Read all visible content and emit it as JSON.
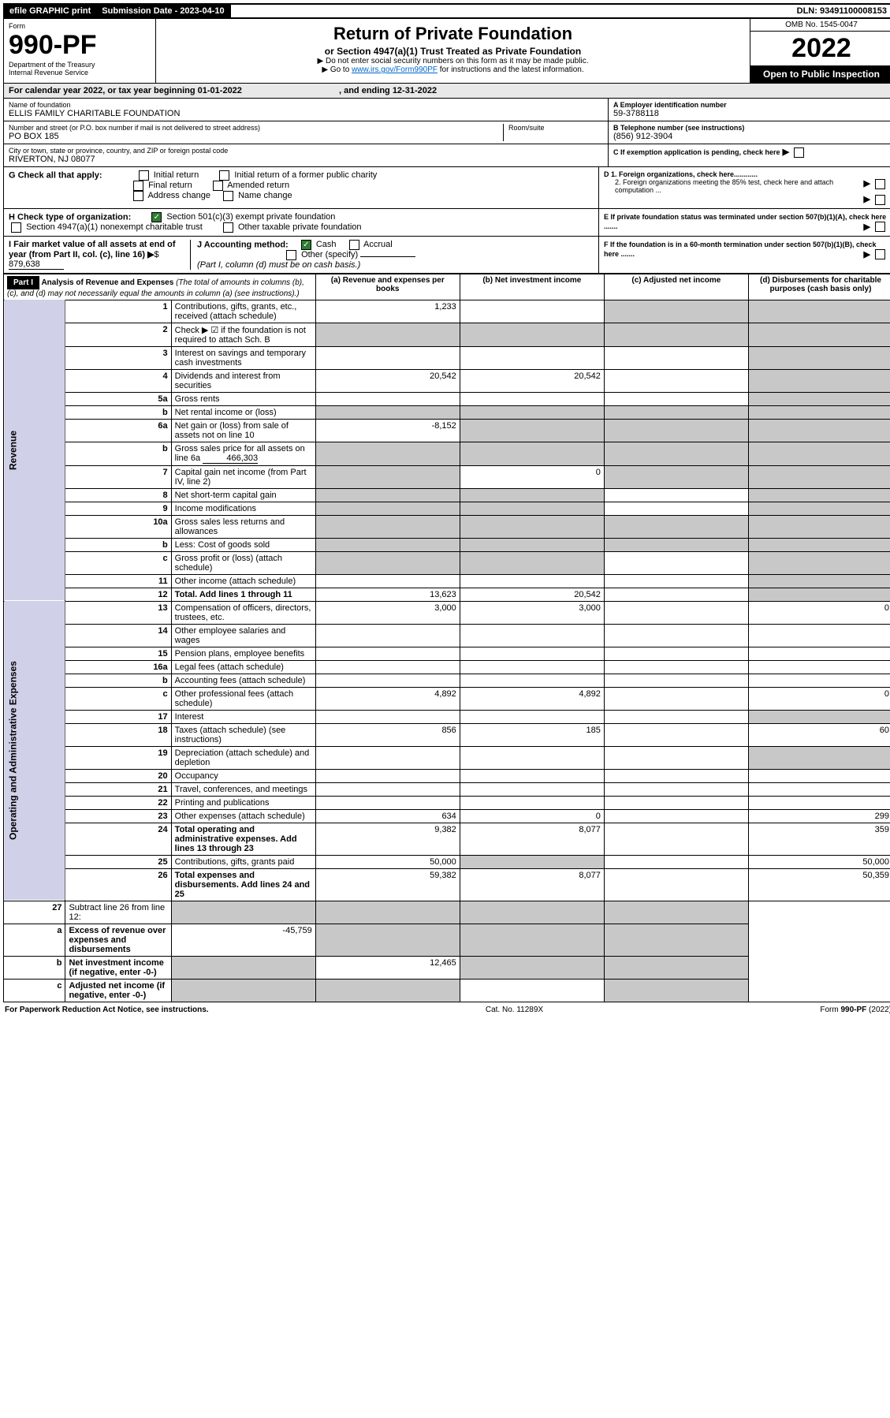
{
  "top": {
    "efile": "efile GRAPHIC print",
    "sub_label": "Submission Date - 2023-04-10",
    "dln_label": "DLN: 93491100008153"
  },
  "header": {
    "form_word": "Form",
    "form_num": "990-PF",
    "dept": "Department of the Treasury",
    "irs": "Internal Revenue Service",
    "title": "Return of Private Foundation",
    "subtitle": "or Section 4947(a)(1) Trust Treated as Private Foundation",
    "instr1": "▶ Do not enter social security numbers on this form as it may be made public.",
    "instr2_pre": "▶ Go to ",
    "instr2_link": "www.irs.gov/Form990PF",
    "instr2_post": " for instructions and the latest information.",
    "omb": "OMB No. 1545-0047",
    "year": "2022",
    "open": "Open to Public Inspection"
  },
  "cal": {
    "text_a": "For calendar year 2022, or tax year beginning 01-01-2022",
    "text_b": ", and ending 12-31-2022"
  },
  "id": {
    "name_label": "Name of foundation",
    "name": "ELLIS FAMILY CHARITABLE FOUNDATION",
    "addr_label": "Number and street (or P.O. box number if mail is not delivered to street address)",
    "addr": "PO BOX 185",
    "room_label": "Room/suite",
    "city_label": "City or town, state or province, country, and ZIP or foreign postal code",
    "city": "RIVERTON, NJ  08077",
    "a_label": "A Employer identification number",
    "a_val": "59-3788118",
    "b_label": "B Telephone number (see instructions)",
    "b_val": "(856) 912-3904",
    "c_label": "C If exemption application is pending, check here",
    "d1": "D 1. Foreign organizations, check here............",
    "d2": "2. Foreign organizations meeting the 85% test, check here and attach computation ...",
    "e": "E  If private foundation status was terminated under section 507(b)(1)(A), check here .......",
    "f": "F  If the foundation is in a 60-month termination under section 507(b)(1)(B), check here .......",
    "g_label": "G Check all that apply:",
    "g_opts": [
      "Initial return",
      "Initial return of a former public charity",
      "Final return",
      "Amended return",
      "Address change",
      "Name change"
    ],
    "h_label": "H Check type of organization:",
    "h_opt1": "Section 501(c)(3) exempt private foundation",
    "h_opt2": "Section 4947(a)(1) nonexempt charitable trust",
    "h_opt3": "Other taxable private foundation",
    "i_label": "I Fair market value of all assets at end of year (from Part II, col. (c), line 16)",
    "i_val": "879,638",
    "j_label": "J Accounting method:",
    "j_cash": "Cash",
    "j_accrual": "Accrual",
    "j_other": "Other (specify)",
    "j_note": "(Part I, column (d) must be on cash basis.)"
  },
  "part1": {
    "label": "Part I",
    "title": "Analysis of Revenue and Expenses",
    "title_note": "(The total of amounts in columns (b), (c), and (d) may not necessarily equal the amounts in column (a) (see instructions).)",
    "col_a": "(a)   Revenue and expenses per books",
    "col_b": "(b)   Net investment income",
    "col_c": "(c)   Adjusted net income",
    "col_d": "(d)   Disbursements for charitable purposes (cash basis only)"
  },
  "sections": {
    "revenue": "Revenue",
    "expenses": "Operating and Administrative Expenses"
  },
  "rows": [
    {
      "n": "1",
      "d": "Contributions, gifts, grants, etc., received (attach schedule)",
      "a": "1,233",
      "b": "",
      "c": "s",
      "dcol": "s"
    },
    {
      "n": "2",
      "d": "Check ▶ ☑ if the foundation is not required to attach Sch. B",
      "a": "s",
      "b": "s",
      "c": "s",
      "dcol": "s",
      "note": true
    },
    {
      "n": "3",
      "d": "Interest on savings and temporary cash investments",
      "a": "",
      "b": "",
      "c": "",
      "dcol": "s"
    },
    {
      "n": "4",
      "d": "Dividends and interest from securities",
      "a": "20,542",
      "b": "20,542",
      "c": "",
      "dcol": "s"
    },
    {
      "n": "5a",
      "d": "Gross rents",
      "a": "",
      "b": "",
      "c": "",
      "dcol": "s"
    },
    {
      "n": "b",
      "d": "Net rental income or (loss)",
      "a": "s",
      "b": "s",
      "c": "s",
      "dcol": "s",
      "inset": true
    },
    {
      "n": "6a",
      "d": "Net gain or (loss) from sale of assets not on line 10",
      "a": "-8,152",
      "b": "s",
      "c": "s",
      "dcol": "s"
    },
    {
      "n": "b",
      "d": "Gross sales price for all assets on line 6a",
      "a": "s",
      "b": "s",
      "c": "s",
      "dcol": "s",
      "inset": true,
      "inline_val": "466,303"
    },
    {
      "n": "7",
      "d": "Capital gain net income (from Part IV, line 2)",
      "a": "s",
      "b": "0",
      "c": "s",
      "dcol": "s"
    },
    {
      "n": "8",
      "d": "Net short-term capital gain",
      "a": "s",
      "b": "s",
      "c": "",
      "dcol": "s"
    },
    {
      "n": "9",
      "d": "Income modifications",
      "a": "s",
      "b": "s",
      "c": "",
      "dcol": "s"
    },
    {
      "n": "10a",
      "d": "Gross sales less returns and allowances",
      "a": "s",
      "b": "s",
      "c": "s",
      "dcol": "s",
      "inset": true
    },
    {
      "n": "b",
      "d": "Less: Cost of goods sold",
      "a": "s",
      "b": "s",
      "c": "s",
      "dcol": "s",
      "inset": true
    },
    {
      "n": "c",
      "d": "Gross profit or (loss) (attach schedule)",
      "a": "s",
      "b": "s",
      "c": "",
      "dcol": "s"
    },
    {
      "n": "11",
      "d": "Other income (attach schedule)",
      "a": "",
      "b": "",
      "c": "",
      "dcol": "s"
    },
    {
      "n": "12",
      "d": "Total. Add lines 1 through 11",
      "a": "13,623",
      "b": "20,542",
      "c": "",
      "dcol": "s",
      "bold": true
    }
  ],
  "exp_rows": [
    {
      "n": "13",
      "d": "Compensation of officers, directors, trustees, etc.",
      "a": "3,000",
      "b": "3,000",
      "c": "",
      "dcol": "0"
    },
    {
      "n": "14",
      "d": "Other employee salaries and wages",
      "a": "",
      "b": "",
      "c": "",
      "dcol": ""
    },
    {
      "n": "15",
      "d": "Pension plans, employee benefits",
      "a": "",
      "b": "",
      "c": "",
      "dcol": ""
    },
    {
      "n": "16a",
      "d": "Legal fees (attach schedule)",
      "a": "",
      "b": "",
      "c": "",
      "dcol": ""
    },
    {
      "n": "b",
      "d": "Accounting fees (attach schedule)",
      "a": "",
      "b": "",
      "c": "",
      "dcol": ""
    },
    {
      "n": "c",
      "d": "Other professional fees (attach schedule)",
      "a": "4,892",
      "b": "4,892",
      "c": "",
      "dcol": "0"
    },
    {
      "n": "17",
      "d": "Interest",
      "a": "",
      "b": "",
      "c": "",
      "dcol": "s"
    },
    {
      "n": "18",
      "d": "Taxes (attach schedule) (see instructions)",
      "a": "856",
      "b": "185",
      "c": "",
      "dcol": "60"
    },
    {
      "n": "19",
      "d": "Depreciation (attach schedule) and depletion",
      "a": "",
      "b": "",
      "c": "",
      "dcol": "s"
    },
    {
      "n": "20",
      "d": "Occupancy",
      "a": "",
      "b": "",
      "c": "",
      "dcol": ""
    },
    {
      "n": "21",
      "d": "Travel, conferences, and meetings",
      "a": "",
      "b": "",
      "c": "",
      "dcol": ""
    },
    {
      "n": "22",
      "d": "Printing and publications",
      "a": "",
      "b": "",
      "c": "",
      "dcol": ""
    },
    {
      "n": "23",
      "d": "Other expenses (attach schedule)",
      "a": "634",
      "b": "0",
      "c": "",
      "dcol": "299"
    },
    {
      "n": "24",
      "d": "Total operating and administrative expenses. Add lines 13 through 23",
      "a": "9,382",
      "b": "8,077",
      "c": "",
      "dcol": "359",
      "bold": true
    },
    {
      "n": "25",
      "d": "Contributions, gifts, grants paid",
      "a": "50,000",
      "b": "s",
      "c": "",
      "dcol": "50,000"
    },
    {
      "n": "26",
      "d": "Total expenses and disbursements. Add lines 24 and 25",
      "a": "59,382",
      "b": "8,077",
      "c": "",
      "dcol": "50,359",
      "bold": true
    }
  ],
  "net_rows": [
    {
      "n": "27",
      "d": "Subtract line 26 from line 12:",
      "a": "s",
      "b": "s",
      "c": "s",
      "dcol": "s"
    },
    {
      "n": "a",
      "d": "Excess of revenue over expenses and disbursements",
      "a": "-45,759",
      "b": "s",
      "c": "s",
      "dcol": "s",
      "bold": true
    },
    {
      "n": "b",
      "d": "Net investment income (if negative, enter -0-)",
      "a": "s",
      "b": "12,465",
      "c": "s",
      "dcol": "s",
      "bold": true
    },
    {
      "n": "c",
      "d": "Adjusted net income (if negative, enter -0-)",
      "a": "s",
      "b": "s",
      "c": "",
      "dcol": "s",
      "bold": true
    }
  ],
  "footer": {
    "left": "For Paperwork Reduction Act Notice, see instructions.",
    "mid": "Cat. No. 11289X",
    "right": "Form 990-PF (2022)"
  },
  "colors": {
    "shaded": "#c8c8c8",
    "link": "#0066cc",
    "vert_bg": "#d0d0e8",
    "check_green": "#2e7d32"
  }
}
